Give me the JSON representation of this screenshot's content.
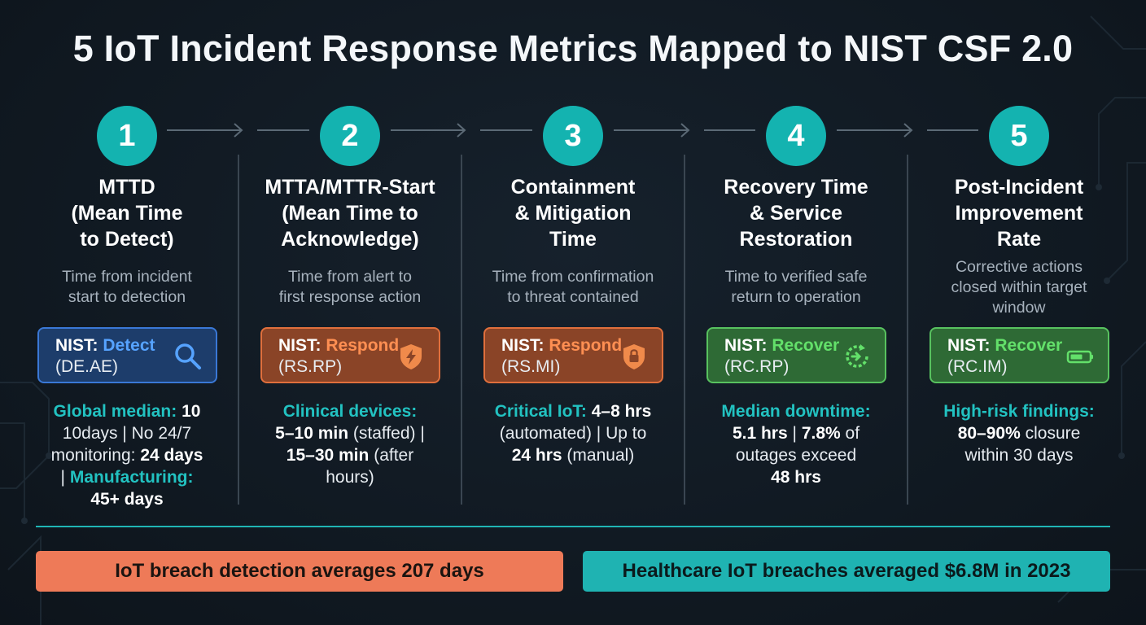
{
  "title": "5 IoT Incident Response Metrics Mapped to NIST CSF 2.0",
  "colors": {
    "teal": "#14b3b0",
    "detect": "#56a3ff",
    "respond": "#ff8f52",
    "recover": "#63e06a",
    "callout_orange": "#ee7a58",
    "callout_teal": "#1fb3b2"
  },
  "metrics": [
    {
      "num": "1",
      "title": [
        "MTTD",
        "(Mean Time",
        "to Detect)"
      ],
      "desc": [
        "Time from incident",
        "start to detection"
      ],
      "nist_label": "NIST:",
      "nist_function": "Detect",
      "nist_code": "(DE.AE)",
      "icon": "magnifier-icon",
      "stats": {
        "l1_head": "Global median:",
        "l1_val": "10",
        "l2_val": "10",
        "l2_rest": "days | No 24/7",
        "l3_pre": "monitoring:",
        "l3_val": "24 days",
        "l4_pipe": "|",
        "l4_head": "Manufacturing:",
        "l5_val": "45+ days"
      }
    },
    {
      "num": "2",
      "title": [
        "MTTA/MTTR-Start",
        "(Mean Time to",
        "Acknowledge)"
      ],
      "desc": [
        "Time from alert to",
        "first response action"
      ],
      "nist_label": "NIST:",
      "nist_function": "Respond",
      "nist_code": "(RS.RP)",
      "icon": "shield-bolt-icon",
      "stats": {
        "l1_head": "Clinical devices:",
        "l2_val": "5–10 min",
        "l2_rest": "(staffed) |",
        "l3_val": "15–30 min",
        "l3_rest": "(after",
        "l4_rest": "hours)"
      }
    },
    {
      "num": "3",
      "title": [
        "Containment",
        "& Mitigation",
        "Time"
      ],
      "desc": [
        "Time from confirmation",
        "to threat contained"
      ],
      "nist_label": "NIST:",
      "nist_function": "Respond",
      "nist_code": "(RS.MI)",
      "icon": "shield-lock-icon",
      "stats": {
        "l1_head": "Critical IoT:",
        "l1_val": "4–8 hrs",
        "l2_rest": "(automated) | Up to",
        "l3_val": "24 hrs",
        "l3_rest": "(manual)"
      }
    },
    {
      "num": "4",
      "title": [
        "Recovery Time",
        "& Service",
        "Restoration"
      ],
      "desc": [
        "Time to verified safe",
        "return to operation"
      ],
      "nist_label": "NIST:",
      "nist_function": "Recover",
      "nist_code": "(RC.RP)",
      "icon": "restore-arrow-icon",
      "stats": {
        "l1_head": "Median downtime:",
        "l2_val": "5.1 hrs",
        "l2_mid": "|",
        "l2_val2": "7.8%",
        "l2_rest": "of",
        "l3_rest": "outages exceed",
        "l4_val": "48 hrs"
      }
    },
    {
      "num": "5",
      "title": [
        "Post-Incident",
        "Improvement",
        "Rate"
      ],
      "desc": [
        "Corrective actions",
        "closed within target",
        "window"
      ],
      "nist_label": "NIST:",
      "nist_function": "Recover",
      "nist_code": "(RC.IM)",
      "icon": "progress-battery-icon",
      "stats": {
        "l1_head": "High-risk findings:",
        "l2_val": "80–90%",
        "l2_rest": "closure",
        "l3_rest": "within 30 days"
      }
    }
  ],
  "callouts": {
    "left": "IoT breach detection averages 207 days",
    "right": "Healthcare IoT breaches averaged $6.8M in 2023"
  }
}
